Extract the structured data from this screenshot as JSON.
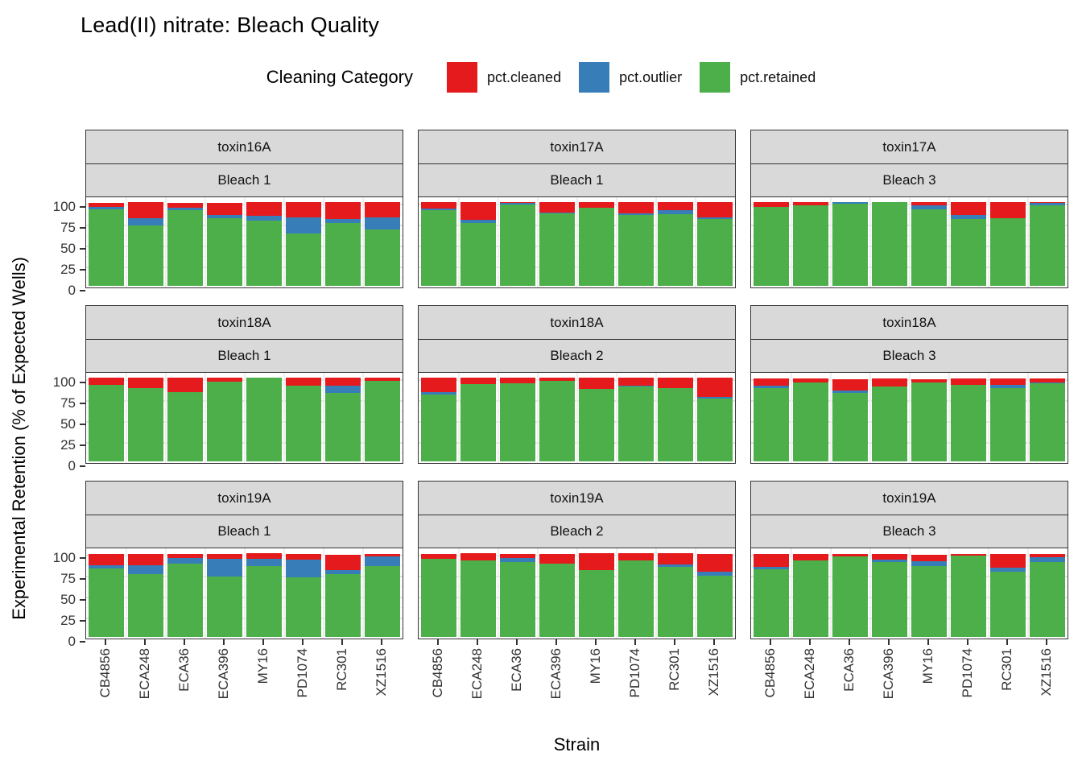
{
  "title": "Lead(II) nitrate: Bleach Quality",
  "legend": {
    "title": "Cleaning Category",
    "items": [
      {
        "label": "pct.cleaned",
        "key": "cleaned",
        "color": "#E41A1C"
      },
      {
        "label": "pct.outlier",
        "key": "outlier",
        "color": "#377EB8"
      },
      {
        "label": "pct.retained",
        "key": "retained",
        "color": "#4DAF4A"
      }
    ]
  },
  "axes": {
    "y_label": "Experimental Retention (% of Expected Wells)",
    "x_label": "Strain",
    "y_ticks": [
      0,
      25,
      50,
      75,
      100
    ],
    "y_minor_ticks": [
      12.5,
      37.5,
      62.5,
      87.5
    ],
    "ylim": [
      0,
      100
    ]
  },
  "chart_data": {
    "type": "bar",
    "stacked": true,
    "stack_order_top_to_bottom": [
      "cleaned",
      "outlier",
      "retained"
    ],
    "categories": [
      "CB4856",
      "ECA248",
      "ECA36",
      "ECA396",
      "MY16",
      "PD1074",
      "RC301",
      "XZ1516"
    ],
    "facet_rows": 3,
    "facet_cols": 3,
    "facets": [
      {
        "strip_top": "toxin16A",
        "strip_bottom": "Bleach 1",
        "retained": [
          91,
          72,
          90,
          81,
          78,
          63,
          75,
          67
        ],
        "outlier": [
          3,
          9,
          3,
          4,
          6,
          19,
          5,
          15
        ],
        "cleaned": [
          5,
          19,
          6,
          14,
          16,
          18,
          20,
          18
        ]
      },
      {
        "strip_top": "toxin17A",
        "strip_bottom": "Bleach 1",
        "retained": [
          90,
          75,
          97,
          87,
          93,
          85,
          86,
          80
        ],
        "outlier": [
          2,
          4,
          2,
          1,
          0,
          2,
          4,
          2
        ],
        "cleaned": [
          8,
          21,
          1,
          12,
          7,
          13,
          10,
          18
        ]
      },
      {
        "strip_top": "toxin17A",
        "strip_bottom": "Bleach 3",
        "retained": [
          94,
          96,
          98,
          100,
          91,
          80,
          81,
          96
        ],
        "outlier": [
          0,
          0,
          2,
          0,
          5,
          5,
          0,
          3
        ],
        "cleaned": [
          6,
          4,
          0,
          0,
          4,
          15,
          19,
          1
        ]
      },
      {
        "strip_top": "toxin18A",
        "strip_bottom": "Bleach 1",
        "retained": [
          91,
          88,
          83,
          95,
          100,
          90,
          82,
          96
        ],
        "outlier": [
          0,
          0,
          0,
          0,
          0,
          0,
          8,
          0
        ],
        "cleaned": [
          9,
          12,
          17,
          5,
          0,
          10,
          10,
          4
        ]
      },
      {
        "strip_top": "toxin18A",
        "strip_bottom": "Bleach 2",
        "retained": [
          80,
          92,
          93,
          96,
          87,
          89,
          88,
          75
        ],
        "outlier": [
          3,
          0,
          0,
          0,
          0,
          1,
          0,
          2
        ],
        "cleaned": [
          17,
          8,
          7,
          4,
          13,
          10,
          12,
          23
        ]
      },
      {
        "strip_top": "toxin18A",
        "strip_bottom": "Bleach 3",
        "retained": [
          88,
          94,
          82,
          89,
          94,
          91,
          88,
          93
        ],
        "outlier": [
          2,
          0,
          3,
          0,
          0,
          0,
          3,
          1
        ],
        "cleaned": [
          9,
          5,
          13,
          10,
          4,
          8,
          8,
          5
        ]
      },
      {
        "strip_top": "toxin19A",
        "strip_bottom": "Bleach 1",
        "retained": [
          82,
          75,
          88,
          72,
          85,
          71,
          75,
          85
        ],
        "outlier": [
          4,
          11,
          6,
          21,
          8,
          21,
          5,
          11
        ],
        "cleaned": [
          13,
          13,
          5,
          6,
          7,
          7,
          18,
          3
        ]
      },
      {
        "strip_top": "toxin19A",
        "strip_bottom": "Bleach 2",
        "retained": [
          93,
          91,
          89,
          88,
          80,
          91,
          84,
          73
        ],
        "outlier": [
          0,
          0,
          5,
          0,
          0,
          0,
          3,
          5
        ],
        "cleaned": [
          6,
          9,
          5,
          11,
          20,
          9,
          13,
          21
        ]
      },
      {
        "strip_top": "toxin19A",
        "strip_bottom": "Bleach 3",
        "retained": [
          81,
          91,
          96,
          89,
          85,
          97,
          78,
          89
        ],
        "outlier": [
          3,
          0,
          0,
          3,
          5,
          0,
          5,
          6
        ],
        "cleaned": [
          15,
          8,
          3,
          7,
          8,
          2,
          16,
          4
        ]
      }
    ]
  }
}
